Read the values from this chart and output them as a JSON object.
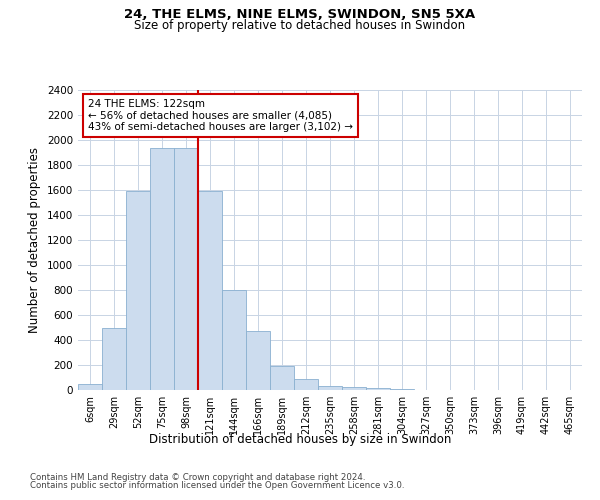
{
  "title1": "24, THE ELMS, NINE ELMS, SWINDON, SN5 5XA",
  "title2": "Size of property relative to detached houses in Swindon",
  "xlabel": "Distribution of detached houses by size in Swindon",
  "ylabel": "Number of detached properties",
  "categories": [
    "6sqm",
    "29sqm",
    "52sqm",
    "75sqm",
    "98sqm",
    "121sqm",
    "144sqm",
    "166sqm",
    "189sqm",
    "212sqm",
    "235sqm",
    "258sqm",
    "281sqm",
    "304sqm",
    "327sqm",
    "350sqm",
    "373sqm",
    "396sqm",
    "419sqm",
    "442sqm",
    "465sqm"
  ],
  "values": [
    50,
    500,
    1590,
    1940,
    1940,
    1590,
    800,
    475,
    190,
    90,
    35,
    25,
    15,
    5,
    3,
    2,
    1,
    1,
    0,
    0,
    0
  ],
  "bar_color": "#ccdcee",
  "bar_edge_color": "#8ab0d0",
  "vline_x": 4.5,
  "vline_color": "#cc0000",
  "annotation_line1": "24 THE ELMS: 122sqm",
  "annotation_line2": "← 56% of detached houses are smaller (4,085)",
  "annotation_line3": "43% of semi-detached houses are larger (3,102) →",
  "annotation_box_edge": "#cc0000",
  "ylim": [
    0,
    2400
  ],
  "yticks": [
    0,
    200,
    400,
    600,
    800,
    1000,
    1200,
    1400,
    1600,
    1800,
    2000,
    2200,
    2400
  ],
  "footer1": "Contains HM Land Registry data © Crown copyright and database right 2024.",
  "footer2": "Contains public sector information licensed under the Open Government Licence v3.0.",
  "bg_color": "#ffffff",
  "grid_color": "#c8d4e4"
}
